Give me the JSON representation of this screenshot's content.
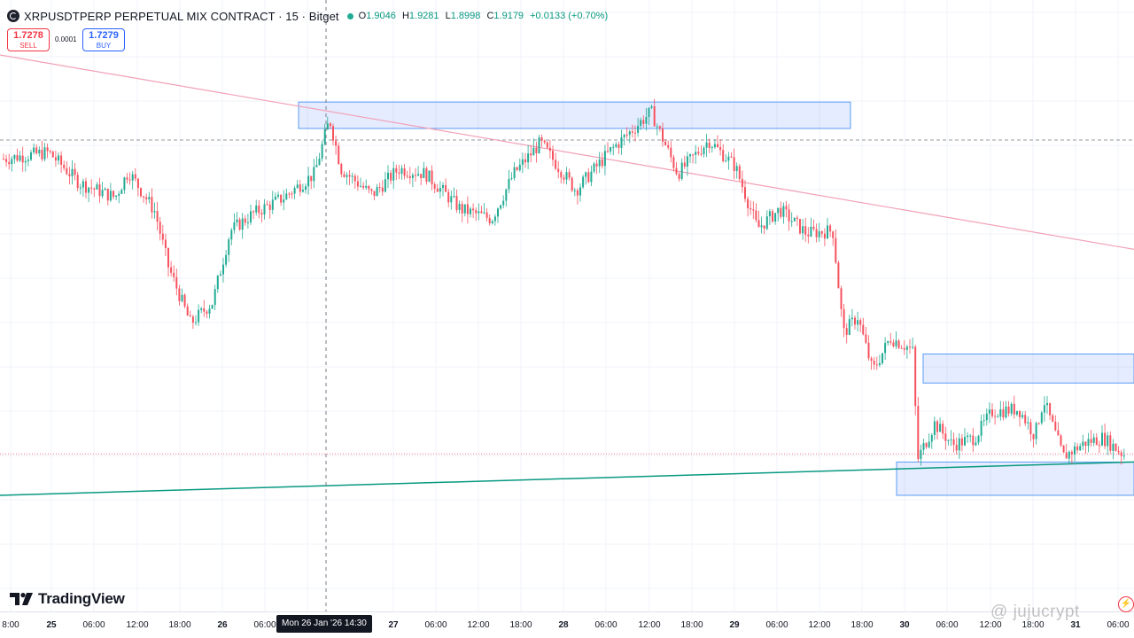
{
  "header": {
    "title": "XRPUSDTPERP PERPETUAL MIX CONTRACT · 15 · Bitget",
    "open": "1.9046",
    "high": "1.9281",
    "low": "1.8998",
    "close": "1.9179",
    "change": "+0.0133 (+0.70%)",
    "o_label": "O",
    "h_label": "H",
    "l_label": "L",
    "c_label": "C"
  },
  "trade": {
    "sell_price": "1.7278",
    "sell_label": "SELL",
    "spread": "0.0001",
    "buy_price": "1.7279",
    "buy_label": "BUY"
  },
  "branding": {
    "logo_text": "TradingView",
    "watermark": "@ jujucrypt"
  },
  "crosshair_label": "Mon 26 Jan '26   14:30",
  "colors": {
    "up": "#22ab94",
    "down": "#f7525f",
    "zone_fill": "rgba(41,98,255,0.12)",
    "zone_border": "#5b9cf6",
    "resistance_line": "#f2a0b6",
    "support_line": "#089981"
  },
  "chart_data": {
    "type": "candlestick",
    "symbol": "XRPUSDTPERP",
    "timeframe": "15",
    "x_ticks": [
      "8:00",
      "25",
      "06:00",
      "12:00",
      "18:00",
      "26",
      "06:00",
      "27",
      "06:00",
      "12:00",
      "18:00",
      "28",
      "06:00",
      "12:00",
      "18:00",
      "29",
      "06:00",
      "12:00",
      "18:00",
      "30",
      "06:00",
      "12:00",
      "18:00",
      "31",
      "06:00"
    ],
    "bold_ticks": [
      "25",
      "26",
      "27",
      "28",
      "29",
      "30",
      "31"
    ],
    "price_path": [
      [
        0,
        1.918
      ],
      [
        55,
        1.921
      ],
      [
        90,
        1.908
      ],
      [
        130,
        1.902
      ],
      [
        145,
        1.913
      ],
      [
        175,
        1.896
      ],
      [
        190,
        1.873
      ],
      [
        215,
        1.849
      ],
      [
        240,
        1.858
      ],
      [
        260,
        1.888
      ],
      [
        285,
        1.895
      ],
      [
        320,
        1.902
      ],
      [
        355,
        1.912
      ],
      [
        372,
        1.935
      ],
      [
        385,
        1.914
      ],
      [
        420,
        1.903
      ],
      [
        450,
        1.914
      ],
      [
        480,
        1.912
      ],
      [
        520,
        1.897
      ],
      [
        555,
        1.893
      ],
      [
        580,
        1.912
      ],
      [
        610,
        1.925
      ],
      [
        650,
        1.905
      ],
      [
        690,
        1.922
      ],
      [
        735,
        1.938
      ],
      [
        765,
        1.912
      ],
      [
        800,
        1.926
      ],
      [
        830,
        1.915
      ],
      [
        855,
        1.889
      ],
      [
        880,
        1.897
      ],
      [
        910,
        1.887
      ],
      [
        940,
        1.888
      ],
      [
        952,
        1.845
      ],
      [
        968,
        1.852
      ],
      [
        985,
        1.829
      ],
      [
        1005,
        1.843
      ],
      [
        1030,
        1.838
      ],
      [
        1036,
        1.792
      ],
      [
        1055,
        1.807
      ],
      [
        1075,
        1.798
      ],
      [
        1100,
        1.801
      ],
      [
        1120,
        1.812
      ],
      [
        1150,
        1.813
      ],
      [
        1168,
        1.802
      ],
      [
        1178,
        1.817
      ],
      [
        1200,
        1.793
      ],
      [
        1225,
        1.799
      ],
      [
        1245,
        1.801
      ],
      [
        1268,
        1.794
      ]
    ],
    "pre_close_line": 1.7942,
    "zones": [
      {
        "from_x": 337,
        "to_x": 960,
        "top": 1.9421,
        "bottom": 1.931
      },
      {
        "from_x": 1042,
        "to_x": 1280,
        "top": 1.8362,
        "bottom": 1.824
      },
      {
        "from_x": 1012,
        "to_x": 1280,
        "top": 1.7908,
        "bottom": 1.7768
      }
    ],
    "trendlines": [
      {
        "name": "resistance",
        "x1": 0,
        "y1": 1.9619,
        "x2": 1280,
        "y2": 1.8802
      },
      {
        "name": "support",
        "x1": 0,
        "y1": 1.7768,
        "x2": 1280,
        "y2": 1.7908
      }
    ],
    "ylim": [
      1.728,
      1.985
    ],
    "crosshair_x_label": "Mon 26 Jan '26 14:30"
  }
}
